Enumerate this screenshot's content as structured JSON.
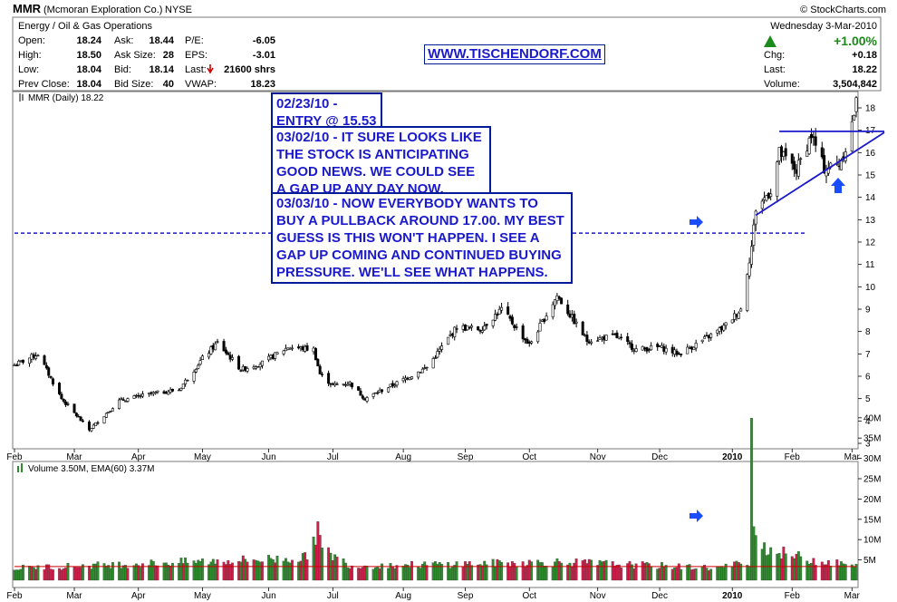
{
  "header": {
    "symbol": "MMR",
    "company": "(Mcmoran Exploration Co.)",
    "exchange": "NYSE",
    "sector": "Energy / Oil & Gas Operations",
    "date": "Wednesday   3-Mar-2010",
    "change_pct": "+1.00%",
    "credit": "© StockCharts.com"
  },
  "quote": {
    "open_label": "Open:",
    "open": "18.24",
    "high_label": "High:",
    "high": "18.50",
    "low_label": "Low:",
    "low": "18.04",
    "prev_label": "Prev Close:",
    "prev": "18.04",
    "ask_label": "Ask:",
    "ask": "18.44",
    "asksize_label": "Ask Size:",
    "asksize": "28",
    "bid_label": "Bid:",
    "bid": "18.14",
    "bidsize_label": "Bid Size:",
    "bidsize": "40",
    "pe_label": "P/E:",
    "pe": "-6.05",
    "eps_label": "EPS:",
    "eps": "-3.01",
    "last_trade_label": "Last:",
    "last_trade": "21600 shrs",
    "vwap_label": "VWAP:",
    "vwap": "18.23",
    "chg_label": "Chg:",
    "chg": "+0.18",
    "last_label": "Last:",
    "last": "18.22",
    "volume_label": "Volume:",
    "volume": "3,504,842"
  },
  "website": "WWW.TISCHENDORF.COM",
  "annotations": {
    "note1": "02/23/10 -\nENTRY @ 15.53",
    "note2": "03/02/10 - IT SURE LOOKS LIKE\nTHE STOCK IS ANTICIPATING\nGOOD NEWS. WE COULD SEE\nA GAP UP ANY DAY NOW.",
    "note3": "03/03/10 - NOW EVERYBODY WANTS TO\nBUY A PULLBACK AROUND 17.00. MY BEST\nGUESS IS THIS WON'T HAPPEN. I SEE A\nGAP UP COMING AND CONTINUED BUYING\nPRESSURE. WE'LL SEE WHAT HAPPENS."
  },
  "colors": {
    "price_up": "#000000",
    "price_down": "#000000",
    "annotation_blue": "#1a1acc",
    "volume_up": "#2e8b2e",
    "volume_down": "#cc1f4a",
    "ema_line": "#cc0000",
    "arrow_up_green": "#1a8a1a",
    "last_down_red": "#cc0000"
  },
  "chart_data": [
    {
      "type": "candlestick",
      "legend": "MMR (Daily) 18.22",
      "x_tick_labels": [
        "Feb",
        "Mar",
        "Apr",
        "May",
        "Jun",
        "Jul",
        "Aug",
        "Sep",
        "Oct",
        "Nov",
        "Dec",
        "2010",
        "Feb",
        "Mar"
      ],
      "y_tick_labels": [
        "3",
        "4",
        "5",
        "6",
        "7",
        "8",
        "9",
        "10",
        "11",
        "12",
        "13",
        "14",
        "15",
        "16",
        "17",
        "18"
      ],
      "ylim": [
        3,
        18.5
      ],
      "grid": false,
      "close_anchors": [
        {
          "date": "2009-02-02",
          "close": 6.5
        },
        {
          "date": "2009-02-13",
          "close": 7.0
        },
        {
          "date": "2009-02-24",
          "close": 5.0
        },
        {
          "date": "2009-03-09",
          "close": 3.6
        },
        {
          "date": "2009-03-23",
          "close": 4.9
        },
        {
          "date": "2009-04-06",
          "close": 5.2
        },
        {
          "date": "2009-04-20",
          "close": 5.4
        },
        {
          "date": "2009-05-01",
          "close": 6.8
        },
        {
          "date": "2009-05-08",
          "close": 7.5
        },
        {
          "date": "2009-05-19",
          "close": 6.3
        },
        {
          "date": "2009-05-29",
          "close": 6.6
        },
        {
          "date": "2009-06-10",
          "close": 7.3
        },
        {
          "date": "2009-06-22",
          "close": 7.2
        },
        {
          "date": "2009-06-25",
          "close": 6.1
        },
        {
          "date": "2009-07-01",
          "close": 5.6
        },
        {
          "date": "2009-07-09",
          "close": 5.7
        },
        {
          "date": "2009-07-16",
          "close": 5.0
        },
        {
          "date": "2009-07-31",
          "close": 5.7
        },
        {
          "date": "2009-08-14",
          "close": 6.4
        },
        {
          "date": "2009-08-28",
          "close": 8.2
        },
        {
          "date": "2009-09-08",
          "close": 8.1
        },
        {
          "date": "2009-09-18",
          "close": 9.0
        },
        {
          "date": "2009-10-01",
          "close": 7.4
        },
        {
          "date": "2009-10-14",
          "close": 9.6
        },
        {
          "date": "2009-10-28",
          "close": 7.6
        },
        {
          "date": "2009-11-10",
          "close": 7.8
        },
        {
          "date": "2009-11-20",
          "close": 7.2
        },
        {
          "date": "2009-12-01",
          "close": 7.3
        },
        {
          "date": "2009-12-10",
          "close": 7.0
        },
        {
          "date": "2009-12-21",
          "close": 7.6
        },
        {
          "date": "2009-12-31",
          "close": 8.2
        },
        {
          "date": "2010-01-08",
          "close": 9.0
        },
        {
          "date": "2010-01-13",
          "close": 11.8
        },
        {
          "date": "2010-01-15",
          "close": 13.5
        },
        {
          "date": "2010-01-22",
          "close": 14.3
        },
        {
          "date": "2010-01-26",
          "close": 16.0
        },
        {
          "date": "2010-02-03",
          "close": 15.2
        },
        {
          "date": "2010-02-10",
          "close": 16.8
        },
        {
          "date": "2010-02-16",
          "close": 15.3
        },
        {
          "date": "2010-02-23",
          "close": 15.5
        },
        {
          "date": "2010-02-26",
          "close": 16.2
        },
        {
          "date": "2010-03-01",
          "close": 17.3
        },
        {
          "date": "2010-03-03",
          "close": 18.22
        }
      ],
      "levels": {
        "dashed_support": 12.4,
        "resistance": 16.95
      }
    },
    {
      "type": "bar",
      "legend": "Volume 3.50M, EMA(60) 3.37M",
      "y_tick_labels": [
        "5M",
        "10M",
        "15M",
        "20M",
        "25M",
        "30M",
        "35M",
        "40M"
      ],
      "ylim": [
        0,
        41
      ],
      "x_tick_labels": [
        "Feb",
        "Mar",
        "Apr",
        "May",
        "Jun",
        "Jul",
        "Aug",
        "Sep",
        "Oct",
        "Nov",
        "Dec",
        "2010",
        "Feb",
        "Mar"
      ],
      "volume_anchors": [
        {
          "date": "2009-02-02",
          "volume": 3.0
        },
        {
          "date": "2009-06-18",
          "volume": 5.5
        },
        {
          "date": "2009-06-24",
          "volume": 12.5
        },
        {
          "date": "2009-06-26",
          "volume": 7.5
        },
        {
          "date": "2009-07-10",
          "volume": 3.5
        },
        {
          "date": "2009-10-15",
          "volume": 4.5
        },
        {
          "date": "2009-12-28",
          "volume": 3.0
        },
        {
          "date": "2010-01-12",
          "volume": 4.5
        },
        {
          "date": "2010-01-13",
          "volume": 40.5
        },
        {
          "date": "2010-01-14",
          "volume": 17.5
        },
        {
          "date": "2010-01-15",
          "volume": 10.0
        },
        {
          "date": "2010-01-20",
          "volume": 8.0
        },
        {
          "date": "2010-01-25",
          "volume": 7.0
        },
        {
          "date": "2010-02-10",
          "volume": 5.0
        },
        {
          "date": "2010-03-03",
          "volume": 3.5
        }
      ],
      "ema_level": 3.37
    }
  ]
}
